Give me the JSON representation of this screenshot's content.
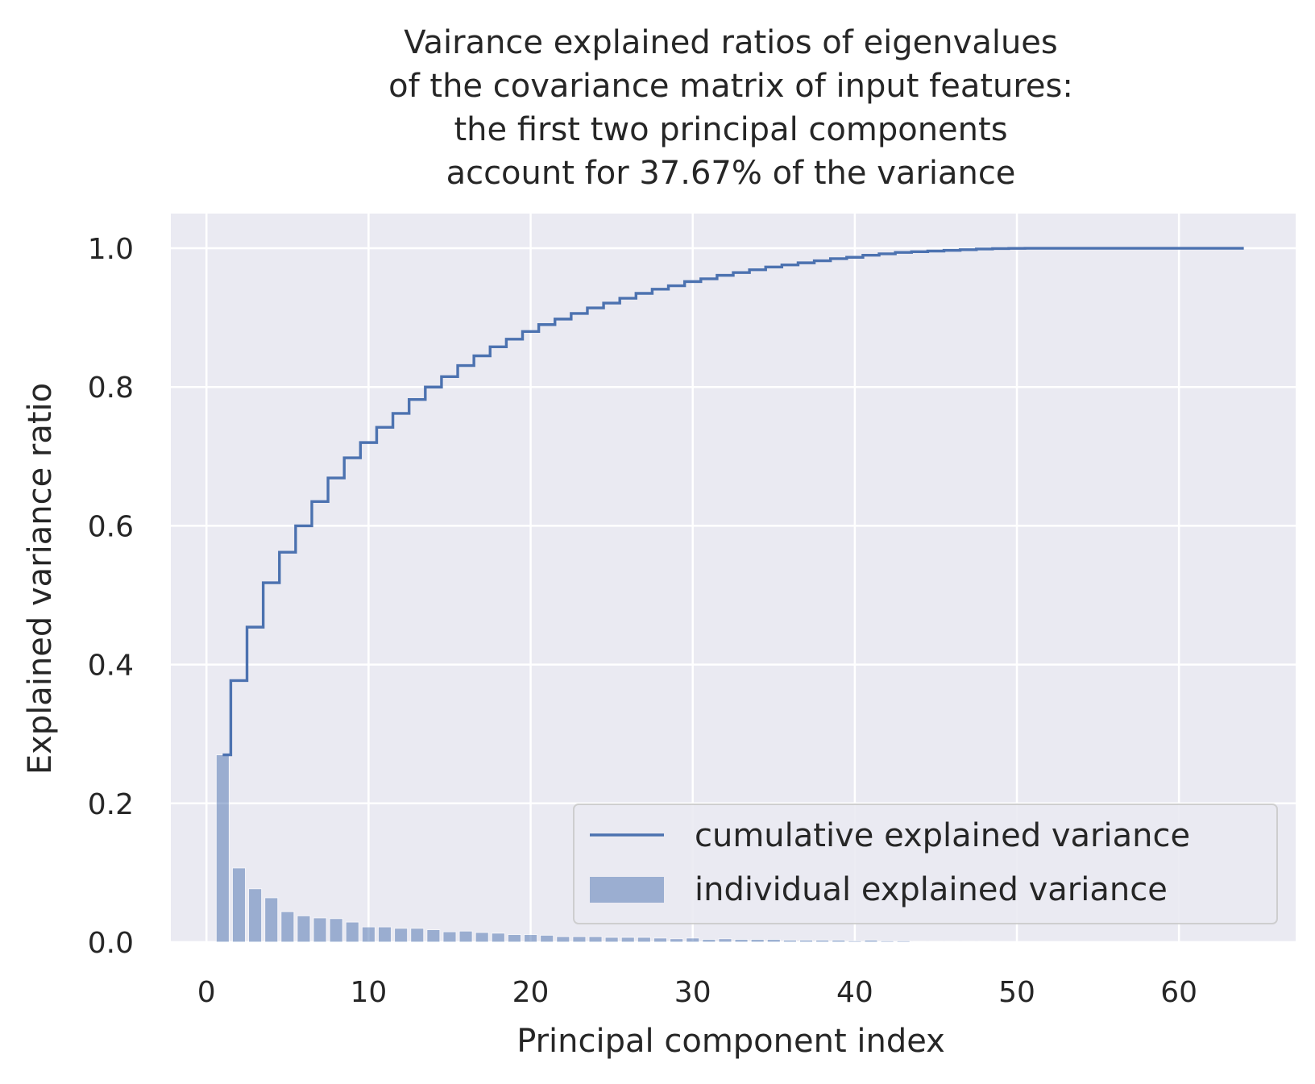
{
  "chart_data": {
    "type": "bar",
    "title_lines": [
      "Vairance explained ratios of eigenvalues",
      "of the covariance matrix of input features:",
      "the first two principal components",
      "account for 37.67% of the variance"
    ],
    "xlabel": "Principal component index",
    "ylabel": "Explained variance ratio",
    "xlim": [
      -2.2,
      67.2
    ],
    "ylim": [
      0,
      1.05
    ],
    "xticks": [
      0,
      10,
      20,
      30,
      40,
      50,
      60
    ],
    "yticks": [
      0.0,
      0.2,
      0.4,
      0.6,
      0.8,
      1.0
    ],
    "ytick_labels": [
      "0.0",
      "0.2",
      "0.4",
      "0.6",
      "0.8",
      "1.0"
    ],
    "grid": true,
    "legend_position": "lower-right",
    "colors": {
      "line": "#4c72b0",
      "bar": "#4c72b0",
      "background": "#eaeaf2",
      "grid": "#ffffff"
    },
    "series": [
      {
        "name": "cumulative explained variance",
        "kind": "step",
        "x": [
          1,
          2,
          3,
          4,
          5,
          6,
          7,
          8,
          9,
          10,
          11,
          12,
          13,
          14,
          15,
          16,
          17,
          18,
          19,
          20,
          21,
          22,
          23,
          24,
          25,
          26,
          27,
          28,
          29,
          30,
          31,
          32,
          33,
          34,
          35,
          36,
          37,
          38,
          39,
          40,
          41,
          42,
          43,
          44,
          45,
          46,
          47,
          48,
          49,
          50,
          51,
          52,
          53,
          54,
          55,
          56,
          57,
          58,
          59,
          60,
          61,
          62,
          63,
          64
        ],
        "values": [
          0.27,
          0.377,
          0.454,
          0.518,
          0.562,
          0.6,
          0.635,
          0.669,
          0.698,
          0.72,
          0.742,
          0.762,
          0.782,
          0.8,
          0.815,
          0.831,
          0.845,
          0.858,
          0.869,
          0.88,
          0.89,
          0.898,
          0.906,
          0.914,
          0.921,
          0.928,
          0.935,
          0.941,
          0.946,
          0.952,
          0.956,
          0.961,
          0.965,
          0.969,
          0.973,
          0.976,
          0.979,
          0.982,
          0.985,
          0.987,
          0.99,
          0.992,
          0.994,
          0.995,
          0.996,
          0.997,
          0.998,
          0.999,
          0.9995,
          0.9998,
          1.0,
          1.0,
          1.0,
          1.0,
          1.0,
          1.0,
          1.0,
          1.0,
          1.0,
          1.0,
          1.0,
          1.0,
          1.0,
          1.0
        ]
      },
      {
        "name": "individual explained variance",
        "kind": "bar",
        "x": [
          1,
          2,
          3,
          4,
          5,
          6,
          7,
          8,
          9,
          10,
          11,
          12,
          13,
          14,
          15,
          16,
          17,
          18,
          19,
          20,
          21,
          22,
          23,
          24,
          25,
          26,
          27,
          28,
          29,
          30,
          31,
          32,
          33,
          34,
          35,
          36,
          37,
          38,
          39,
          40,
          41,
          42,
          43,
          44,
          45,
          46,
          47,
          48,
          49,
          50,
          51,
          52,
          53,
          54,
          55,
          56,
          57,
          58,
          59,
          60,
          61,
          62,
          63,
          64
        ],
        "values": [
          0.27,
          0.107,
          0.077,
          0.064,
          0.044,
          0.038,
          0.035,
          0.034,
          0.029,
          0.022,
          0.022,
          0.02,
          0.02,
          0.018,
          0.015,
          0.016,
          0.014,
          0.013,
          0.011,
          0.011,
          0.01,
          0.008,
          0.008,
          0.008,
          0.007,
          0.007,
          0.007,
          0.006,
          0.005,
          0.006,
          0.004,
          0.005,
          0.004,
          0.004,
          0.004,
          0.003,
          0.003,
          0.003,
          0.003,
          0.002,
          0.003,
          0.002,
          0.002,
          0.001,
          0.001,
          0.001,
          0.001,
          0.001,
          0.0005,
          0.0003,
          0.0002,
          0,
          0,
          0,
          0,
          0,
          0,
          0,
          0,
          0,
          0,
          0,
          0,
          0
        ]
      }
    ]
  }
}
